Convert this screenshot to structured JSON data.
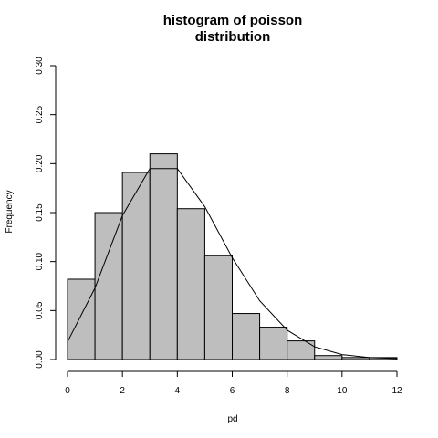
{
  "chart_data": {
    "type": "bar",
    "title_lines": [
      "histogram of poisson",
      "distribution"
    ],
    "xlabel": "pd",
    "ylabel": "Frequency",
    "xlim": [
      0,
      12
    ],
    "ylim": [
      0,
      0.3
    ],
    "x_ticks": [
      "0",
      "2",
      "4",
      "6",
      "8",
      "10",
      "12"
    ],
    "y_ticks": [
      "0.00",
      "0.05",
      "0.10",
      "0.15",
      "0.20",
      "0.25",
      "0.30"
    ],
    "grid": false,
    "legend": "none",
    "bins": [
      {
        "start": 0,
        "end": 1,
        "value": 0.082
      },
      {
        "start": 1,
        "end": 2,
        "value": 0.15
      },
      {
        "start": 2,
        "end": 3,
        "value": 0.191
      },
      {
        "start": 3,
        "end": 4,
        "value": 0.21
      },
      {
        "start": 4,
        "end": 5,
        "value": 0.154
      },
      {
        "start": 5,
        "end": 6,
        "value": 0.106
      },
      {
        "start": 6,
        "end": 7,
        "value": 0.047
      },
      {
        "start": 7,
        "end": 8,
        "value": 0.033
      },
      {
        "start": 8,
        "end": 9,
        "value": 0.019
      },
      {
        "start": 9,
        "end": 10,
        "value": 0.004
      },
      {
        "start": 10,
        "end": 11,
        "value": 0.002
      },
      {
        "start": 11,
        "end": 12,
        "value": 0.002
      }
    ],
    "series": [
      {
        "type": "line",
        "x": [
          0,
          1,
          2,
          3,
          4,
          5,
          6,
          7,
          8,
          9,
          10,
          11,
          12
        ],
        "y": [
          0.018,
          0.073,
          0.147,
          0.195,
          0.195,
          0.156,
          0.104,
          0.06,
          0.03,
          0.013,
          0.005,
          0.002,
          0.001
        ]
      }
    ],
    "colors": {
      "bar_fill": "#bebebe",
      "bar_stroke": "#000000",
      "line": "#000000"
    }
  }
}
